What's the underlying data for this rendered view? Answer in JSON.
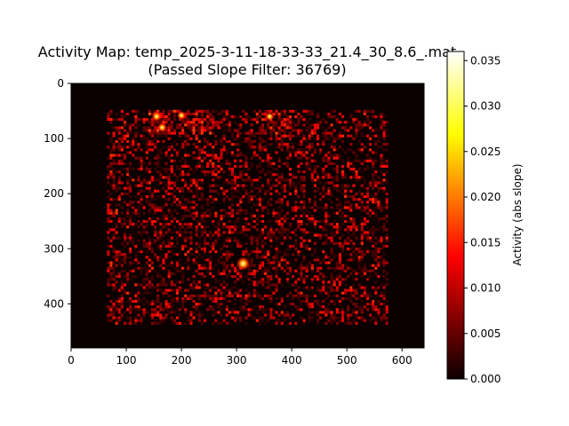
{
  "chart_data": {
    "type": "heatmap",
    "title_line1": "Activity Map: temp_2025-3-11-18-33-33_21.4_30_8.6_.mat",
    "title_line2": "(Passed Slope Filter: 36769)",
    "xlim": [
      0,
      640
    ],
    "ylim": [
      480,
      0
    ],
    "x_ticks": [
      0,
      100,
      200,
      300,
      400,
      500,
      600
    ],
    "y_ticks": [
      0,
      100,
      200,
      300,
      400
    ],
    "colormap": "hot",
    "colorbar": {
      "label": "Activity (abs slope)",
      "range": [
        0.0,
        0.036
      ],
      "ticks": [
        "0.000",
        "0.005",
        "0.010",
        "0.015",
        "0.020",
        "0.025",
        "0.030",
        "0.035"
      ]
    },
    "active_region": {
      "x": [
        65,
        575
      ],
      "y": [
        48,
        435
      ]
    },
    "hotspots": [
      {
        "x": 312,
        "y": 327,
        "value": 0.028
      },
      {
        "x": 155,
        "y": 60,
        "value": 0.016
      },
      {
        "x": 165,
        "y": 80,
        "value": 0.014
      },
      {
        "x": 200,
        "y": 58,
        "value": 0.012
      },
      {
        "x": 360,
        "y": 60,
        "value": 0.011
      }
    ]
  }
}
